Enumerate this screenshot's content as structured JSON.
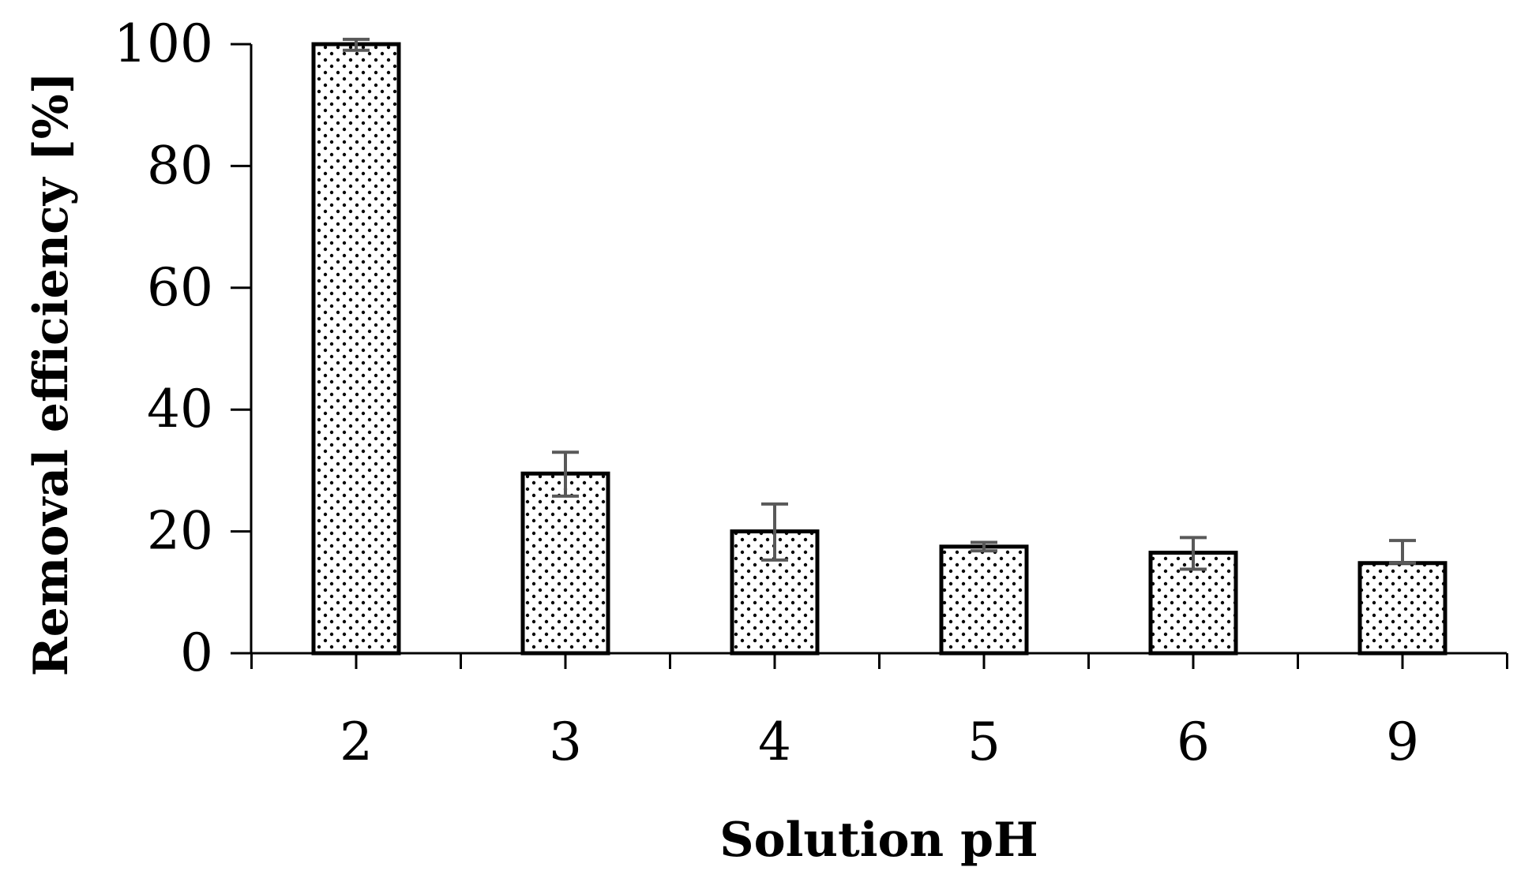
{
  "chart_data": {
    "type": "bar",
    "title": "",
    "xlabel": "Solution pH",
    "ylabel": "Removal efficiency [%]",
    "categories": [
      "2",
      "3",
      "4",
      "5",
      "6",
      "9"
    ],
    "values": [
      100,
      29.5,
      20,
      17.5,
      16.5,
      14.8
    ],
    "error_low": [
      99.0,
      25.8,
      15.3,
      16.8,
      13.8,
      14.8
    ],
    "error_high": [
      100.8,
      33.0,
      24.5,
      18.2,
      19.0,
      18.5
    ],
    "yticks": [
      "0",
      "20",
      "40",
      "60",
      "80",
      "100"
    ],
    "ylim": [
      0,
      100
    ],
    "grid": false,
    "legend": "none",
    "bar_fill": "#ffffff",
    "bar_stroke": "#000000",
    "bar_pattern": "dots",
    "error_bar_color": "#595959"
  }
}
